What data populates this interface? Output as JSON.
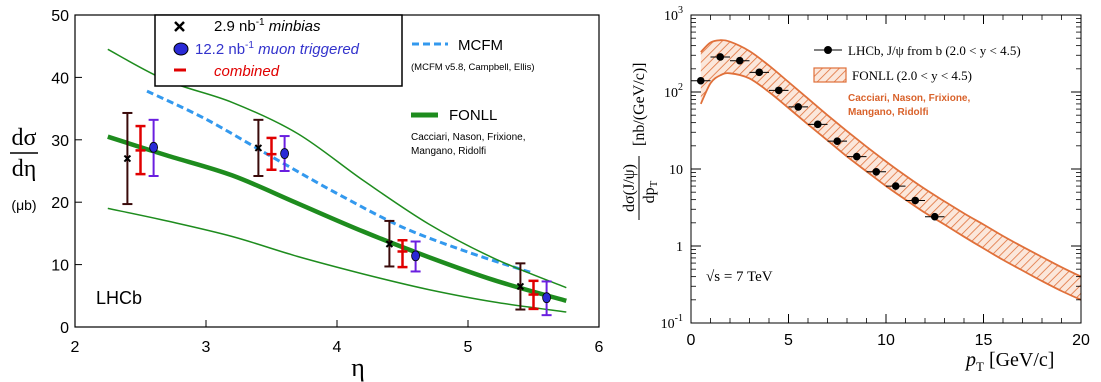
{
  "chart_data": [
    {
      "type": "scatter",
      "xlabel": "η",
      "ylabel": "dσ/dη",
      "ylabel_num": "dσ",
      "ylabel_den": "dη",
      "yunit": "(μb)",
      "xlim": [
        2,
        6
      ],
      "ylim": [
        0,
        50
      ],
      "xticks": [
        2,
        3,
        4,
        5,
        6
      ],
      "yticks": [
        0,
        10,
        20,
        30,
        40,
        50
      ],
      "annotation": "LHCb",
      "legend": [
        {
          "marker": "x",
          "lumi": "2.9 nb",
          "sup": "-1",
          "rest": " minbias",
          "color": "#000000"
        },
        {
          "marker": "circle",
          "lumi": "12.2 nb",
          "sup": "-1",
          "rest": " muon triggered",
          "color": "#3333cc"
        },
        {
          "marker": "dash",
          "lumi": "",
          "sup": "",
          "rest": "combined",
          "color": "#e00000"
        }
      ],
      "series": [
        {
          "name": "2.9 nb-1 minbias",
          "x": [
            2.4,
            3.4,
            4.4,
            5.4
          ],
          "y": [
            27,
            28.7,
            13.3,
            6.5
          ],
          "ylo": [
            19.7,
            24.2,
            9.7,
            2.8
          ],
          "yhi": [
            34.3,
            33.2,
            17,
            10.2
          ],
          "color": "#000000"
        },
        {
          "name": "12.2 nb-1 muon triggered",
          "x": [
            2.6,
            3.6,
            4.6,
            5.6
          ],
          "y": [
            28.8,
            27.8,
            11.4,
            4.7
          ],
          "ylo": [
            24.2,
            25,
            8.9,
            1.9
          ],
          "yhi": [
            33.2,
            30.6,
            13.7,
            7.3
          ],
          "color": "#3333cc"
        },
        {
          "name": "combined",
          "x": [
            2.5,
            3.5,
            4.5,
            5.5
          ],
          "y": [
            28.3,
            27.7,
            12.1,
            5.2
          ],
          "ylo": [
            24.5,
            25.2,
            9.6,
            2.9
          ],
          "yhi": [
            32.2,
            30.3,
            13.9,
            7.4
          ],
          "color": "#e00000"
        }
      ],
      "curves": [
        {
          "name": "MCFM",
          "label": "MCFM",
          "sublabel": "(MCFM v5.8, Campbell, Ellis)",
          "style": "dashed",
          "color": "#3399ee",
          "x": [
            2.55,
            3,
            3.5,
            4,
            4.5,
            5,
            5.5
          ],
          "y": [
            37.8,
            33.3,
            27.3,
            21.4,
            16,
            12,
            8.6
          ]
        },
        {
          "name": "FONLL",
          "label": "FONLL",
          "sublabel1": "Cacciari, Nason, Frixione,",
          "sublabel2": "Mangano, Ridolfi",
          "style": "solid-thick",
          "color": "#1e8c1e",
          "x": [
            2.25,
            2.7,
            3.2,
            3.7,
            4.2,
            4.7,
            5.2,
            5.75
          ],
          "y": [
            30.5,
            27.5,
            24.3,
            19.8,
            15.3,
            11.2,
            7.5,
            4.2
          ]
        },
        {
          "name": "FONLL upper",
          "style": "solid-thin",
          "color": "#1e8c1e",
          "x": [
            2.25,
            2.7,
            3.2,
            3.7,
            4.2,
            4.7,
            5.2,
            5.75
          ],
          "y": [
            44.5,
            39.5,
            36,
            31,
            23.5,
            16.5,
            11,
            6.3
          ]
        },
        {
          "name": "FONLL lower",
          "style": "solid-thin",
          "color": "#1e8c1e",
          "x": [
            2.25,
            2.7,
            3.2,
            3.7,
            4.2,
            4.7,
            5.2,
            5.75
          ],
          "y": [
            19,
            17,
            14.5,
            11.3,
            8.5,
            6,
            4,
            2.4
          ]
        }
      ]
    },
    {
      "type": "scatter",
      "xlabel_main": "p",
      "xlabel_sub": "T",
      "xlabel_unit": " [GeV/c]",
      "ylabel_num": "dσ(J/ψ)",
      "ylabel_den": "dp",
      "ylabel_den_sub": "T",
      "ylabel_unit": "[nb/(GeV/c)]",
      "xlim": [
        0,
        20
      ],
      "ylim": [
        0.1,
        1000
      ],
      "log_y": true,
      "xticks": [
        0,
        5,
        10,
        15,
        20
      ],
      "yticks": [
        {
          "value": 0.1,
          "base": "10",
          "exp": "-1"
        },
        {
          "value": 1,
          "base": "1",
          "exp": ""
        },
        {
          "value": 10,
          "base": "10",
          "exp": ""
        },
        {
          "value": 100,
          "base": "10",
          "exp": "2"
        },
        {
          "value": 1000,
          "base": "10",
          "exp": "3"
        }
      ],
      "annotation": "√s = 7 TeV",
      "legend": [
        {
          "marker": "dot",
          "text": "LHCb, J/ψ from b (2.0 < y < 4.5)"
        },
        {
          "marker": "hatch",
          "text": "FONLL (2.0 < y < 4.5)"
        }
      ],
      "theory_credit1": "Cacciari, Nason, Frixione,",
      "theory_credit2": "Mangano, Ridolfi",
      "colors": {
        "band": "#e0703a",
        "credit": "#d9622b"
      },
      "series": [
        {
          "name": "LHCb, J/ψ from b",
          "x": [
            0.5,
            1.5,
            2.5,
            3.5,
            4.5,
            5.5,
            6.5,
            7.5,
            8.5,
            9.5,
            10.5,
            11.5,
            12.5
          ],
          "y": [
            140,
            285,
            255,
            180,
            105,
            64,
            38,
            23,
            14.5,
            9.2,
            6.0,
            3.9,
            2.4
          ],
          "xerr": 0.5
        }
      ],
      "band": {
        "x": [
          0.5,
          1.0,
          1.5,
          2.0,
          3.0,
          4.0,
          5.0,
          6.0,
          7.0,
          8.0,
          9.0,
          10.0,
          11.0,
          12.0,
          13.0,
          14.0,
          15.0,
          16.0,
          17.0,
          18.0,
          19.0,
          20.0
        ],
        "upper": [
          330,
          440,
          470,
          450,
          340,
          220,
          135,
          82,
          50,
          31,
          19.5,
          12.5,
          8.2,
          5.5,
          3.8,
          2.65,
          1.9,
          1.35,
          0.98,
          0.72,
          0.53,
          0.4
        ],
        "lower": [
          70,
          130,
          165,
          175,
          150,
          100,
          62,
          38,
          23.5,
          14.5,
          9.3,
          6.0,
          4.0,
          2.7,
          1.9,
          1.32,
          0.93,
          0.66,
          0.48,
          0.35,
          0.26,
          0.2
        ]
      }
    }
  ]
}
